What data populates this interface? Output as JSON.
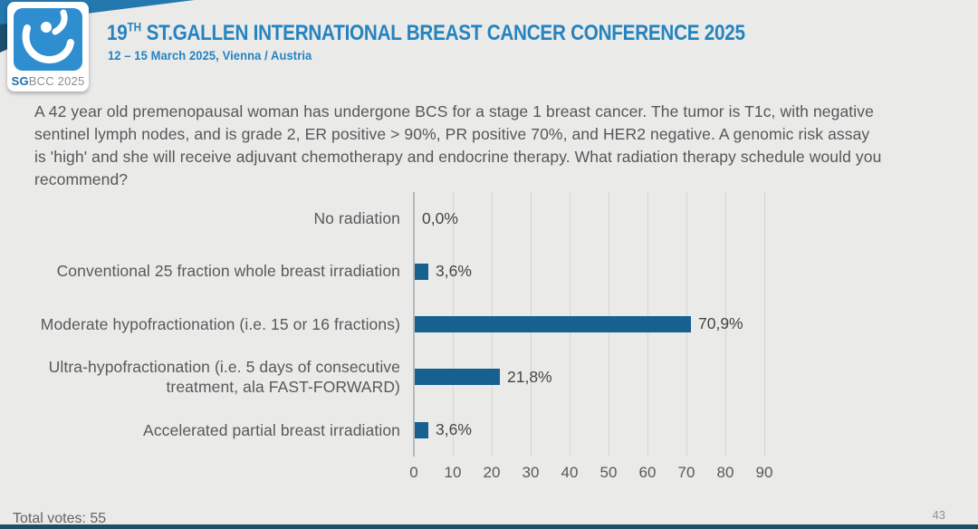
{
  "header": {
    "title_prefix": "19",
    "title_sup": "TH",
    "title_rest": " ST.GALLEN INTERNATIONAL BREAST CANCER CONFERENCE 2025",
    "subtitle": "12 – 15 March 2025, Vienna / Austria",
    "logo": {
      "icon": "sgbcc-drop-icon",
      "text_bold": "SG",
      "text_rest": "BCC 2025"
    }
  },
  "question": "A 42 year old premenopausal woman has undergone BCS for a stage 1 breast cancer.  The tumor is T1c, with negative sentinel lymph nodes, and is grade 2, ER positive > 90%, PR positive 70%, and HER2 negative.  A genomic risk assay is 'high' and she will receive adjuvant chemotherapy and endocrine therapy. What radiation therapy schedule would you recommend?",
  "chart_data": {
    "type": "bar",
    "orientation": "horizontal",
    "categories": [
      "No radiation",
      "Conventional 25 fraction whole breast irradiation",
      "Moderate hypofractionation (i.e. 15 or 16 fractions)",
      "Ultra-hypofractionation (i.e. 5 days of consecutive treatment, ala FAST-FORWARD)",
      "Accelerated partial breast irradiation"
    ],
    "values": [
      0.0,
      3.6,
      70.9,
      21.8,
      3.6
    ],
    "value_labels": [
      "0,0%",
      "3,6%",
      "70,9%",
      "21,8%",
      "3,6%"
    ],
    "xlim": [
      0,
      90
    ],
    "x_ticks": [
      0,
      10,
      20,
      30,
      40,
      50,
      60,
      70,
      80,
      90
    ],
    "grid": true,
    "legend": false,
    "title": "",
    "xlabel": "",
    "ylabel": "",
    "bar_color": "#16618F",
    "decimal_separator": ","
  },
  "footer": {
    "total_votes": "Total votes: 55",
    "page_number": "43"
  },
  "colors": {
    "background": "#EAEAE9",
    "accent_title": "#2583BF",
    "logo_blue": "#2F8ECF",
    "bar_blue": "#16618F",
    "ribbon_dark": "#1B506C",
    "ribbon_blue": "#2478AD",
    "bottom_band": "#1D4F63"
  }
}
